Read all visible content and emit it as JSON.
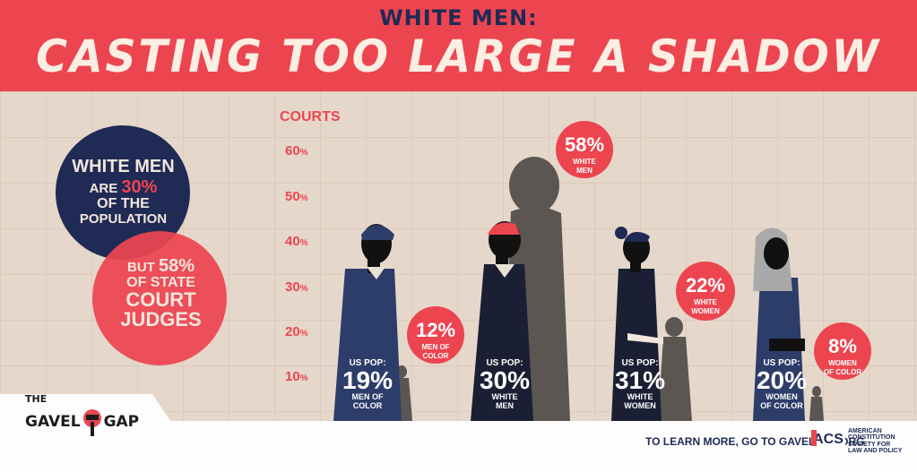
{
  "header": {
    "sup_title": "WHITE MEN:",
    "main_title": "CASTING TOO LARGE A SHADOW"
  },
  "axis": {
    "title": "COURTS",
    "ticks": [
      "60",
      "50",
      "40",
      "30",
      "20",
      "10"
    ],
    "unit": "%"
  },
  "callout": {
    "line1": "WHITE MEN",
    "line2_a": "ARE",
    "line2_b": "30%",
    "line3": "OF THE",
    "line4": "POPULATION",
    "line5_a": "BUT",
    "line5_b": "58%",
    "line6": "OF STATE",
    "line7": "COURT",
    "line8": "JUDGES"
  },
  "groups": [
    {
      "pop_key": "US POP:",
      "pop": "19%",
      "group_a": "MEN OF",
      "group_b": "COLOR",
      "court": "12%",
      "court_a": "MEN OF",
      "court_b": "COLOR"
    },
    {
      "pop_key": "US POP:",
      "pop": "30%",
      "group_a": "WHITE",
      "group_b": "MEN",
      "court": "58%",
      "court_a": "WHITE",
      "court_b": "MEN"
    },
    {
      "pop_key": "US POP:",
      "pop": "31%",
      "group_a": "WHITE",
      "group_b": "WOMEN",
      "court": "22%",
      "court_a": "WHITE",
      "court_b": "WOMEN"
    },
    {
      "pop_key": "US POP:",
      "pop": "20%",
      "group_a": "WOMEN",
      "group_b": "OF COLOR",
      "court": "8%",
      "court_a": "WOMEN",
      "court_b": "OF COLOR"
    }
  ],
  "footer": {
    "brand_the": "THE",
    "brand_gavel": "GAVEL",
    "brand_gap": "GAP",
    "learn_prefix": "TO LEARN MORE, GO TO ",
    "learn_url": "GAVELGAP.ORG",
    "acs_mark": "ACS",
    "acs_line1": "AMERICAN",
    "acs_line2": "CONSTITUTION",
    "acs_line3": "SOCIETY FOR",
    "acs_line4": "LAW AND POLICY"
  },
  "colors": {
    "red": "#ec4550",
    "navy": "#1f2a55",
    "beige": "#e6d7cb",
    "shadow": "#5b5652"
  }
}
